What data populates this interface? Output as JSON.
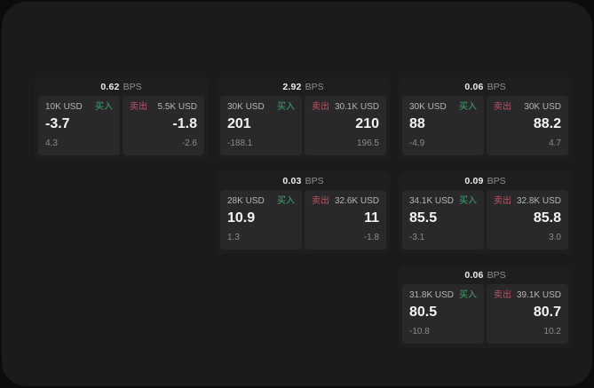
{
  "window": {
    "background": "#0c0c0c",
    "panel_background": "#1b1b1d"
  },
  "labels": {
    "bps_unit": "BPS",
    "buy": "买入",
    "sell": "卖出"
  },
  "colors": {
    "buy_green": "#3fa869",
    "sell_red": "#c25064",
    "price_white": "#f4f4f5",
    "muted_gray": "#8b8b8e",
    "amount_gray": "#b6b6ba",
    "card_bg": "#1e1e20",
    "tile_bg": "#29292b"
  },
  "cards": [
    {
      "bps_value": "0.62",
      "buy": {
        "amount": "10K USD",
        "price": "-3.7",
        "change": "4.3"
      },
      "sell": {
        "amount": "5.5K USD",
        "price": "-1.8",
        "change": "-2.6"
      }
    },
    {
      "bps_value": "2.92",
      "buy": {
        "amount": "30K USD",
        "price": "201",
        "change": "-188.1"
      },
      "sell": {
        "amount": "30.1K USD",
        "price": "210",
        "change": "196.5"
      }
    },
    {
      "bps_value": "0.06",
      "buy": {
        "amount": "30K USD",
        "price": "88",
        "change": "-4.9"
      },
      "sell": {
        "amount": "30K USD",
        "price": "88.2",
        "change": "4.7"
      }
    },
    {
      "bps_value": "0.03",
      "buy": {
        "amount": "28K USD",
        "price": "10.9",
        "change": "1.3"
      },
      "sell": {
        "amount": "32.6K USD",
        "price": "11",
        "change": "-1.8"
      }
    },
    {
      "bps_value": "0.09",
      "buy": {
        "amount": "34.1K USD",
        "price": "85.5",
        "change": "-3.1"
      },
      "sell": {
        "amount": "32.8K USD",
        "price": "85.8",
        "change": "3.0"
      }
    },
    {
      "bps_value": "0.06",
      "buy": {
        "amount": "31.8K USD",
        "price": "80.5",
        "change": "-10.8"
      },
      "sell": {
        "amount": "39.1K USD",
        "price": "80.7",
        "change": "10.2"
      }
    }
  ]
}
